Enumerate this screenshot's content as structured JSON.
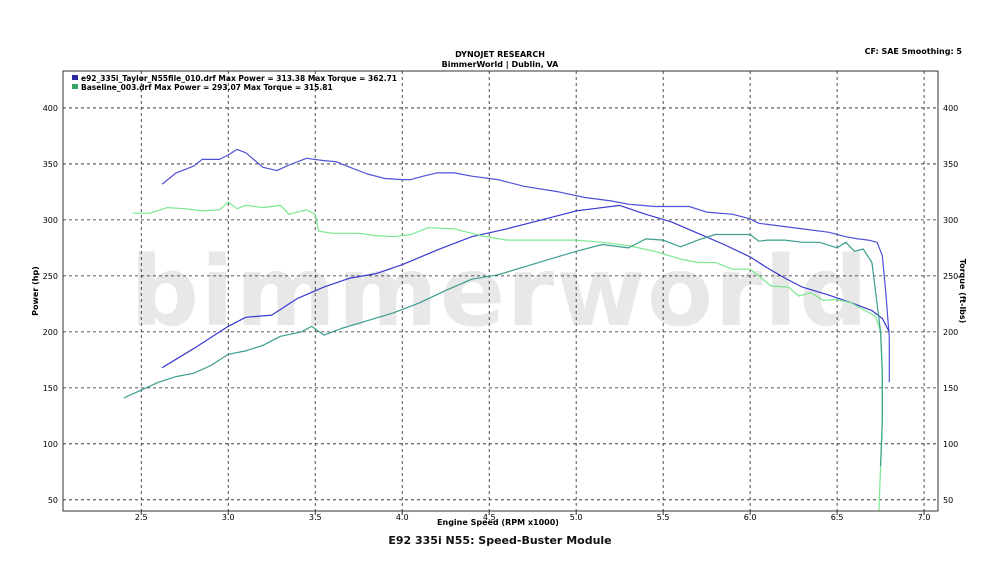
{
  "header": {
    "title": "DYNOJET RESEARCH",
    "subtitle": "BimmerWorld | Dublin, VA",
    "cf_info": "CF: SAE  Smoothing: 5"
  },
  "caption": "E92 335i N55: Speed-Buster Module",
  "watermark": "bimmerworld",
  "colors": {
    "run1": "#3a3ad0",
    "run2": "#5ee07a",
    "run1_swatch": "#2a2aa0",
    "run2_swatch": "#3aa86a",
    "grid": "#222222",
    "frame": "#333333"
  },
  "chart_data": {
    "type": "line",
    "xlabel": "Engine Speed (RPM x1000)",
    "ylabel": "Power (hp)",
    "y2label": "Torque (ft-lbs)",
    "xlim": [
      2.05,
      7.08
    ],
    "ylim": [
      40,
      433
    ],
    "xticks": [
      "2.5",
      "3.0",
      "3.5",
      "4.0",
      "4.5",
      "5.0",
      "5.5",
      "6.0",
      "6.5",
      "7.0"
    ],
    "yticks": [
      "50",
      "100",
      "150",
      "200",
      "250",
      "300",
      "350",
      "400"
    ],
    "legend": [
      "e92_335i_Taylor_N55file_010.drf Max Power = 313.38     Max Torque = 362.71",
      "Baseline_003.drf Max Power = 293.07     Max Torque = 315.81"
    ],
    "legend_position": "top-left",
    "grid": true,
    "series": [
      {
        "name": "e92_335i_Taylor_N55file_010.drf",
        "measure": "Torque",
        "color": "#5050d8",
        "points": [
          [
            2.62,
            332
          ],
          [
            2.7,
            342
          ],
          [
            2.8,
            348
          ],
          [
            2.85,
            354
          ],
          [
            2.95,
            354
          ],
          [
            3.0,
            358
          ],
          [
            3.05,
            363
          ],
          [
            3.1,
            360
          ],
          [
            3.2,
            347
          ],
          [
            3.28,
            344
          ],
          [
            3.35,
            349
          ],
          [
            3.45,
            355
          ],
          [
            3.55,
            353
          ],
          [
            3.62,
            352
          ],
          [
            3.7,
            347
          ],
          [
            3.8,
            341
          ],
          [
            3.9,
            337
          ],
          [
            4.0,
            336
          ],
          [
            4.05,
            336
          ],
          [
            4.12,
            339
          ],
          [
            4.2,
            342
          ],
          [
            4.3,
            342
          ],
          [
            4.4,
            339
          ],
          [
            4.55,
            336
          ],
          [
            4.7,
            330
          ],
          [
            4.9,
            325
          ],
          [
            5.05,
            320
          ],
          [
            5.2,
            317
          ],
          [
            5.3,
            314
          ],
          [
            5.45,
            312
          ],
          [
            5.55,
            312
          ],
          [
            5.65,
            312
          ],
          [
            5.75,
            307
          ],
          [
            5.9,
            305
          ],
          [
            6.0,
            301
          ],
          [
            6.05,
            297
          ],
          [
            6.1,
            296
          ],
          [
            6.2,
            294
          ],
          [
            6.3,
            292
          ],
          [
            6.45,
            289
          ],
          [
            6.55,
            285
          ],
          [
            6.62,
            283
          ],
          [
            6.68,
            282
          ],
          [
            6.73,
            280
          ],
          [
            6.76,
            268
          ],
          [
            6.78,
            235
          ],
          [
            6.8,
            195
          ],
          [
            6.8,
            155
          ]
        ]
      },
      {
        "name": "e92_335i_Taylor_N55file_010.drf",
        "measure": "Power",
        "color": "#3a3ad0",
        "points": [
          [
            2.62,
            168
          ],
          [
            2.8,
            185
          ],
          [
            3.0,
            205
          ],
          [
            3.1,
            213
          ],
          [
            3.25,
            215
          ],
          [
            3.4,
            230
          ],
          [
            3.55,
            240
          ],
          [
            3.7,
            248
          ],
          [
            3.85,
            252
          ],
          [
            4.0,
            260
          ],
          [
            4.2,
            273
          ],
          [
            4.4,
            285
          ],
          [
            4.6,
            292
          ],
          [
            4.8,
            300
          ],
          [
            5.0,
            308
          ],
          [
            5.1,
            310
          ],
          [
            5.25,
            313
          ],
          [
            5.4,
            305
          ],
          [
            5.55,
            298
          ],
          [
            5.7,
            288
          ],
          [
            5.85,
            278
          ],
          [
            6.0,
            267
          ],
          [
            6.1,
            257
          ],
          [
            6.2,
            248
          ],
          [
            6.3,
            240
          ],
          [
            6.45,
            233
          ],
          [
            6.6,
            225
          ],
          [
            6.7,
            219
          ],
          [
            6.76,
            212
          ],
          [
            6.8,
            200
          ]
        ]
      },
      {
        "name": "Baseline_003.drf",
        "measure": "Torque",
        "color": "#7ae890",
        "points": [
          [
            2.45,
            306
          ],
          [
            2.55,
            306
          ],
          [
            2.65,
            311
          ],
          [
            2.75,
            310
          ],
          [
            2.85,
            308
          ],
          [
            2.95,
            309
          ],
          [
            3.0,
            316
          ],
          [
            3.05,
            310
          ],
          [
            3.1,
            313
          ],
          [
            3.2,
            311
          ],
          [
            3.3,
            313
          ],
          [
            3.35,
            305
          ],
          [
            3.45,
            309
          ],
          [
            3.5,
            305
          ],
          [
            3.52,
            290
          ],
          [
            3.6,
            288
          ],
          [
            3.75,
            288
          ],
          [
            3.85,
            286
          ],
          [
            3.95,
            285
          ],
          [
            4.05,
            287
          ],
          [
            4.15,
            293
          ],
          [
            4.3,
            292
          ],
          [
            4.45,
            286
          ],
          [
            4.6,
            282
          ],
          [
            4.8,
            282
          ],
          [
            5.0,
            282
          ],
          [
            5.15,
            280
          ],
          [
            5.3,
            277
          ],
          [
            5.45,
            272
          ],
          [
            5.6,
            265
          ],
          [
            5.7,
            262
          ],
          [
            5.8,
            262
          ],
          [
            5.9,
            256
          ],
          [
            6.0,
            256
          ],
          [
            6.05,
            250
          ],
          [
            6.12,
            241
          ],
          [
            6.22,
            240
          ],
          [
            6.28,
            232
          ],
          [
            6.35,
            235
          ],
          [
            6.42,
            228
          ],
          [
            6.5,
            229
          ],
          [
            6.58,
            226
          ],
          [
            6.65,
            220
          ],
          [
            6.72,
            214
          ],
          [
            6.75,
            200
          ],
          [
            6.76,
            160
          ],
          [
            6.76,
            120
          ],
          [
            6.75,
            80
          ],
          [
            6.74,
            40
          ]
        ]
      },
      {
        "name": "Baseline_003.drf",
        "measure": "Power",
        "color": "#3a9e8e",
        "points": [
          [
            2.4,
            141
          ],
          [
            2.5,
            148
          ],
          [
            2.6,
            155
          ],
          [
            2.7,
            160
          ],
          [
            2.8,
            163
          ],
          [
            2.9,
            170
          ],
          [
            3.0,
            180
          ],
          [
            3.1,
            183
          ],
          [
            3.2,
            188
          ],
          [
            3.3,
            196
          ],
          [
            3.42,
            200
          ],
          [
            3.48,
            205
          ],
          [
            3.55,
            197
          ],
          [
            3.65,
            203
          ],
          [
            3.8,
            210
          ],
          [
            3.95,
            217
          ],
          [
            4.1,
            226
          ],
          [
            4.25,
            237
          ],
          [
            4.4,
            247
          ],
          [
            4.55,
            251
          ],
          [
            4.7,
            258
          ],
          [
            4.85,
            265
          ],
          [
            5.0,
            272
          ],
          [
            5.15,
            278
          ],
          [
            5.3,
            275
          ],
          [
            5.4,
            283
          ],
          [
            5.5,
            282
          ],
          [
            5.6,
            276
          ],
          [
            5.7,
            282
          ],
          [
            5.8,
            287
          ],
          [
            5.9,
            287
          ],
          [
            6.0,
            287
          ],
          [
            6.05,
            281
          ],
          [
            6.1,
            282
          ],
          [
            6.2,
            282
          ],
          [
            6.3,
            280
          ],
          [
            6.4,
            280
          ],
          [
            6.5,
            275
          ],
          [
            6.55,
            280
          ],
          [
            6.6,
            272
          ],
          [
            6.65,
            274
          ],
          [
            6.7,
            262
          ],
          [
            6.75,
            200
          ],
          [
            6.76,
            165
          ],
          [
            6.76,
            120
          ],
          [
            6.75,
            80
          ]
        ]
      }
    ]
  }
}
